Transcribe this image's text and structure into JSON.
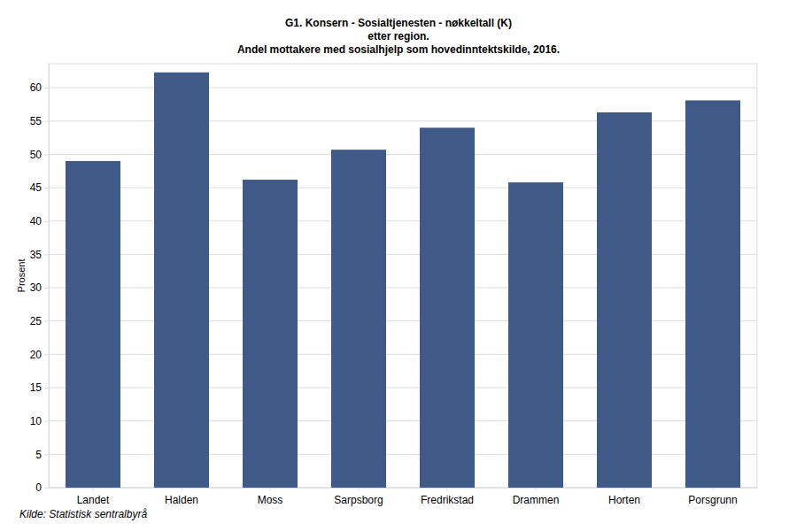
{
  "chart_data": {
    "type": "bar",
    "title": "G1. Konsern - Sosialtjenesten - nøkkeltall (K)",
    "subtitle": [
      "etter region.",
      "Andel mottakere med sosialhjelp som hovedinntektskilde, 2016."
    ],
    "ylabel": "Prosent",
    "source": "Kilde: Statistisk sentralbyrå",
    "categories": [
      "Landet",
      "Halden",
      "Moss",
      "Sarpsborg",
      "Fredrikstad",
      "Drammen",
      "Horten",
      "Porsgrunn"
    ],
    "values": [
      49.0,
      62.3,
      46.2,
      50.7,
      54.0,
      45.8,
      56.3,
      58.1
    ],
    "color": "#3f5a87",
    "ylim": [
      0,
      63.6
    ],
    "yticks": [
      0,
      5,
      10,
      15,
      20,
      25,
      30,
      35,
      40,
      45,
      50,
      55,
      60
    ],
    "grid": true
  }
}
